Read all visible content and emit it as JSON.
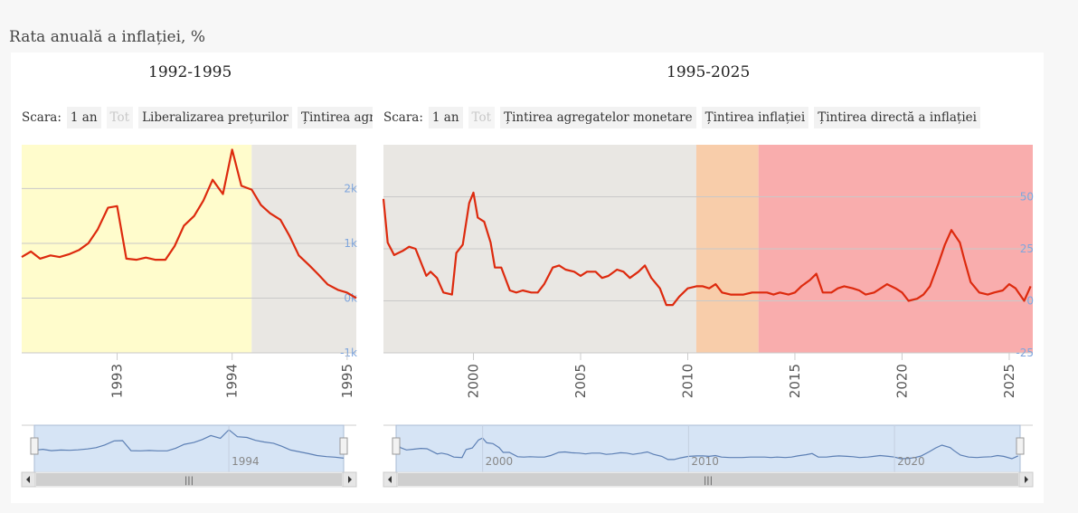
{
  "page": {
    "title": "Rata anuală a inflației, %"
  },
  "colors": {
    "line": "#dd2a0e",
    "navigator_line": "#5c7fb4",
    "navigator_fill": "#d6e4f5",
    "band_grey": "#e9e7e3",
    "band_yellow": "#fffccc",
    "band_orange": "#f8cdaa",
    "band_red": "#f9adad",
    "axis_label": "#7fa6dd"
  },
  "chart_data": [
    {
      "type": "line",
      "title": "1992-1995",
      "toolbar": {
        "scale_label": "Scara:",
        "buttons": [
          "1 an",
          "Tot",
          "Liberalizarea prețurilor",
          "Țintirea agregatelor monetare"
        ]
      },
      "x_ticks": [
        "1993",
        "1994",
        "1995"
      ],
      "y_ticks": [
        "2k",
        "1k",
        "0k",
        "-1k"
      ],
      "ylim": [
        -1000,
        2800
      ],
      "xlim": [
        1992.17,
        1995.08
      ],
      "grid": true,
      "bands": [
        {
          "name": "Liberalizarea prețurilor",
          "from": 1992.17,
          "to": 1994.17,
          "color": "band_yellow"
        },
        {
          "name": "Țintirea agregatelor monetare",
          "from": 1994.17,
          "to": 1995.08,
          "color": "band_grey"
        }
      ],
      "navigator_ticks": [
        "1994"
      ],
      "series": [
        {
          "x": [
            1992.17,
            1992.25,
            1992.33,
            1992.42,
            1992.5,
            1992.58,
            1992.67,
            1992.75,
            1992.83,
            1992.92,
            1993.0,
            1993.08,
            1993.17,
            1993.25,
            1993.33,
            1993.42,
            1993.5,
            1993.58,
            1993.67,
            1993.75,
            1993.83,
            1993.92,
            1994.0,
            1994.08,
            1994.17,
            1994.25,
            1994.33,
            1994.42,
            1994.5,
            1994.58,
            1994.67,
            1994.75,
            1994.83,
            1994.92,
            1995.0,
            1995.08
          ],
          "y": [
            750,
            850,
            720,
            780,
            750,
            800,
            880,
            1000,
            1250,
            1650,
            1680,
            720,
            700,
            740,
            700,
            700,
            950,
            1320,
            1500,
            1780,
            2160,
            1900,
            2710,
            2050,
            1980,
            1700,
            1550,
            1430,
            1130,
            780,
            600,
            430,
            250,
            150,
            100,
            0
          ]
        }
      ]
    },
    {
      "type": "line",
      "title": "1995-2025",
      "toolbar": {
        "scale_label": "Scara:",
        "buttons": [
          "1 an",
          "Tot",
          "Țintirea agregatelor monetare",
          "Țintirea inflației",
          "Țintirea directă a inflației"
        ]
      },
      "x_ticks": [
        "2000",
        "2005",
        "2010",
        "2015",
        "2020",
        "2025"
      ],
      "y_ticks": [
        "50",
        "25",
        "0",
        "-25"
      ],
      "ylim": [
        -25,
        75
      ],
      "xlim": [
        1995.8,
        2026.1
      ],
      "grid": true,
      "bands": [
        {
          "name": "Țintirea agregatelor monetare",
          "from": 1995.8,
          "to": 2010.4,
          "color": "band_grey"
        },
        {
          "name": "Țintirea inflației",
          "from": 2010.4,
          "to": 2013.3,
          "color": "band_orange"
        },
        {
          "name": "Țintirea directă a inflației",
          "from": 2013.3,
          "to": 2026.1,
          "color": "band_red"
        }
      ],
      "navigator_ticks": [
        "2000",
        "2010",
        "2020"
      ],
      "series": [
        {
          "x": [
            1995.8,
            1996.0,
            1996.3,
            1996.7,
            1997.0,
            1997.3,
            1997.8,
            1998.0,
            1998.3,
            1998.6,
            1999.0,
            1999.2,
            1999.5,
            1999.8,
            2000.0,
            2000.2,
            2000.5,
            2000.8,
            2001.0,
            2001.3,
            2001.7,
            2002.0,
            2002.3,
            2002.7,
            2003.0,
            2003.3,
            2003.7,
            2004.0,
            2004.3,
            2004.7,
            2005.0,
            2005.3,
            2005.7,
            2006.0,
            2006.3,
            2006.7,
            2007.0,
            2007.3,
            2007.7,
            2008.0,
            2008.3,
            2008.7,
            2009.0,
            2009.3,
            2009.6,
            2010.0,
            2010.4,
            2010.7,
            2011.0,
            2011.3,
            2011.6,
            2012.0,
            2012.3,
            2012.6,
            2013.0,
            2013.3,
            2013.7,
            2014.0,
            2014.3,
            2014.7,
            2015.0,
            2015.3,
            2015.7,
            2016.0,
            2016.3,
            2016.7,
            2017.0,
            2017.3,
            2017.7,
            2018.0,
            2018.3,
            2018.7,
            2019.0,
            2019.3,
            2019.7,
            2020.0,
            2020.3,
            2020.7,
            2021.0,
            2021.3,
            2021.7,
            2022.0,
            2022.3,
            2022.7,
            2022.9,
            2023.2,
            2023.6,
            2024.0,
            2024.3,
            2024.7,
            2025.0,
            2025.3,
            2025.7,
            2026.0
          ],
          "y": [
            49,
            28,
            22,
            24,
            26,
            25,
            12,
            14,
            11,
            4,
            3,
            23,
            27,
            47,
            52,
            40,
            38,
            28,
            16,
            16,
            5,
            4,
            5,
            4,
            4,
            8,
            16,
            17,
            15,
            14,
            12,
            14,
            14,
            11,
            12,
            15,
            14,
            11,
            14,
            17,
            11,
            6,
            -2,
            -2,
            2,
            6,
            7,
            7,
            6,
            8,
            4,
            3,
            3,
            3,
            4,
            4,
            4,
            3,
            4,
            3,
            4,
            7,
            10,
            13,
            4,
            4,
            6,
            7,
            6,
            5,
            3,
            4,
            6,
            8,
            6,
            4,
            0,
            1,
            3,
            7,
            18,
            27,
            34,
            28,
            20,
            9,
            4,
            3,
            4,
            5,
            8,
            6,
            0,
            7
          ]
        }
      ]
    }
  ]
}
